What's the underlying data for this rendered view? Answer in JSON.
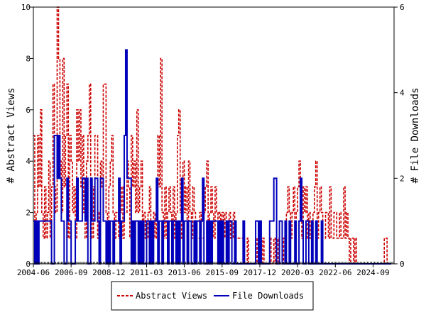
{
  "chart_data": {
    "type": "line",
    "xlabel": "",
    "ylabel_left": "# Abstract Views",
    "ylabel_right": "# File Downloads",
    "ylim_left": [
      0,
      10
    ],
    "ylim_right": [
      0,
      6
    ],
    "yticks_left": [
      "0",
      "2",
      "4",
      "6",
      "8",
      "10"
    ],
    "yticks_right": [
      "0",
      "2",
      "4",
      "6"
    ],
    "xlim": [
      "2004-06",
      "2025-12"
    ],
    "xticks": [
      "2004-06",
      "2006-09",
      "2008-12",
      "2011-03",
      "2013-06",
      "2015-09",
      "2017-12",
      "2020-03",
      "2022-06",
      "2024-09"
    ],
    "grid": false,
    "legend_position": "bottom",
    "series": [
      {
        "name": "Abstract Views",
        "axis": "left",
        "color": "#cc0000",
        "dash": "dashed",
        "values": [
          5,
          1,
          2,
          5,
          3,
          6,
          2,
          1,
          3,
          1,
          2,
          4,
          1,
          3,
          7,
          3,
          2,
          10,
          8,
          4,
          2,
          8,
          3,
          5,
          7,
          1,
          5,
          4,
          2,
          3,
          1,
          6,
          4,
          6,
          3,
          5,
          2,
          1,
          4,
          5,
          7,
          2,
          1,
          3,
          5,
          5,
          1,
          2,
          4,
          3,
          7,
          7,
          2,
          1,
          3,
          4,
          5,
          2,
          1,
          2,
          2,
          1,
          2,
          3,
          1,
          2,
          2,
          4,
          3,
          1,
          5,
          3,
          4,
          2,
          6,
          2,
          3,
          4,
          1,
          2,
          1,
          1,
          2,
          3,
          1,
          1,
          2,
          1,
          2,
          5,
          3,
          8,
          2,
          1,
          3,
          1,
          2,
          3,
          2,
          1,
          3,
          1,
          2,
          5,
          6,
          2,
          1,
          4,
          2,
          3,
          1,
          4,
          2,
          1,
          3,
          2,
          1,
          1,
          1,
          2,
          1,
          1,
          2,
          3,
          4,
          1,
          2,
          3,
          2,
          1,
          3,
          2,
          1,
          2,
          1,
          2,
          1,
          2,
          1,
          1,
          2,
          1,
          1,
          2,
          1,
          1,
          1,
          1,
          1,
          1,
          1,
          0,
          0,
          1,
          0,
          0,
          0,
          0,
          0,
          0,
          1,
          0,
          0,
          0,
          1,
          0,
          0,
          0,
          0,
          1,
          0,
          0,
          1,
          0,
          0,
          1,
          0,
          0,
          0,
          1,
          1,
          2,
          3,
          2,
          1,
          2,
          3,
          1,
          2,
          3,
          4,
          2,
          1,
          3,
          2,
          3,
          1,
          2,
          1,
          1,
          2,
          3,
          4,
          1,
          2,
          3,
          2,
          1,
          1,
          2,
          2,
          1,
          3,
          1,
          1,
          2,
          2,
          1,
          1,
          2,
          1,
          1,
          3,
          1,
          2,
          1,
          0,
          1,
          1,
          0,
          1,
          0,
          0,
          0,
          0,
          0,
          0,
          0,
          0,
          0,
          0,
          0,
          0,
          0,
          0,
          0,
          0,
          0,
          0,
          0,
          0,
          1,
          1,
          0,
          0,
          0
        ]
      },
      {
        "name": "File Downloads",
        "axis": "right",
        "color": "#0000bb",
        "dash": "solid",
        "values": [
          1,
          0,
          1,
          0,
          1,
          1,
          1,
          1,
          1,
          1,
          1,
          1,
          1,
          0,
          0,
          3,
          3,
          2,
          3,
          2,
          1,
          1,
          0,
          0,
          2,
          1,
          1,
          0,
          0,
          0,
          1,
          2,
          1,
          1,
          1,
          2,
          2,
          1,
          2,
          0,
          0,
          2,
          1,
          1,
          2,
          2,
          1,
          0,
          2,
          2,
          1,
          1,
          0,
          1,
          0,
          1,
          1,
          0,
          1,
          1,
          1,
          2,
          0,
          1,
          1,
          3,
          5,
          2,
          2,
          2,
          0,
          1,
          0,
          1,
          1,
          0,
          1,
          0,
          1,
          0,
          0,
          1,
          1,
          0,
          1,
          0,
          1,
          1,
          2,
          0,
          1,
          1,
          0,
          1,
          1,
          1,
          0,
          1,
          1,
          0,
          1,
          1,
          0,
          1,
          0,
          1,
          2,
          0,
          1,
          1,
          0,
          1,
          1,
          0,
          0,
          1,
          0,
          1,
          1,
          0,
          1,
          2,
          0,
          0,
          1,
          0,
          1,
          0,
          1,
          1,
          1,
          1,
          0,
          1,
          0,
          1,
          0,
          0,
          1,
          0,
          1,
          1,
          0,
          0,
          1,
          0,
          0,
          0,
          0,
          0,
          1,
          0,
          0,
          0,
          0,
          0,
          0,
          0,
          0,
          1,
          1,
          0,
          1,
          0,
          0,
          0,
          0,
          0,
          0,
          1,
          1,
          1,
          2,
          2,
          0,
          0,
          1,
          1,
          0,
          0,
          1,
          0,
          0,
          1,
          0,
          0,
          0,
          1,
          0,
          0,
          1,
          2,
          1,
          0,
          0,
          1,
          1,
          0,
          0,
          1,
          0,
          0,
          1,
          0,
          0,
          0,
          1,
          0,
          0,
          0,
          0,
          0,
          0,
          0,
          0,
          0,
          0,
          0,
          0,
          0,
          0,
          0,
          0,
          0,
          0,
          0,
          0,
          0,
          0,
          0,
          0,
          0,
          0,
          0,
          0,
          0,
          0,
          0,
          0,
          0,
          0,
          0,
          0,
          0,
          0,
          0,
          0,
          0,
          0,
          0,
          0,
          0,
          0,
          0,
          0,
          0
        ]
      }
    ]
  }
}
